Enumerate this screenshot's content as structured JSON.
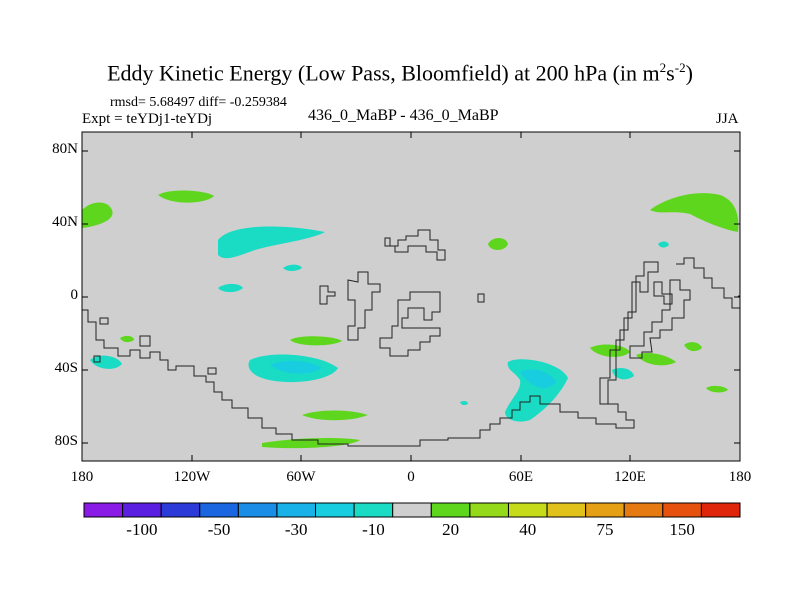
{
  "title_main": "Eddy Kinetic Energy (Low Pass, Bloomfield) at 200 hPa (in m",
  "title_sup1": "2",
  "title_s": "s",
  "title_sup2": "-2",
  "title_end": ")",
  "rmsd_text": "rmsd= 5.68497 diff= -0.259384",
  "expt_text": "Expt = teYDj1-teYDj",
  "center_text": "436_0_MaBP - 436_0_MaBP",
  "season": "JJA",
  "lat_labels": [
    "80N",
    "40N",
    "0",
    "40S",
    "80S"
  ],
  "lon_labels": [
    "180",
    "120W",
    "60W",
    "0",
    "60E",
    "120E",
    "180"
  ],
  "colorbar": {
    "colors": [
      "#8a1ae6",
      "#5a1fe0",
      "#2c3ad8",
      "#1a66e0",
      "#1a8ee6",
      "#18b2e8",
      "#18cde0",
      "#1adcc4",
      "#cfcfcf",
      "#5fd61e",
      "#94d91a",
      "#c6db1a",
      "#e0c21a",
      "#e6a016",
      "#e67a12",
      "#e6520e",
      "#e0260a"
    ],
    "labels": [
      "-100",
      "-50",
      "-30",
      "-10",
      "20",
      "40",
      "75",
      "150"
    ]
  },
  "colors": {
    "background": "#cfcfcf",
    "positive": "#5fd61e",
    "negative": "#1adcc4",
    "negative_core": "#18cde0"
  }
}
